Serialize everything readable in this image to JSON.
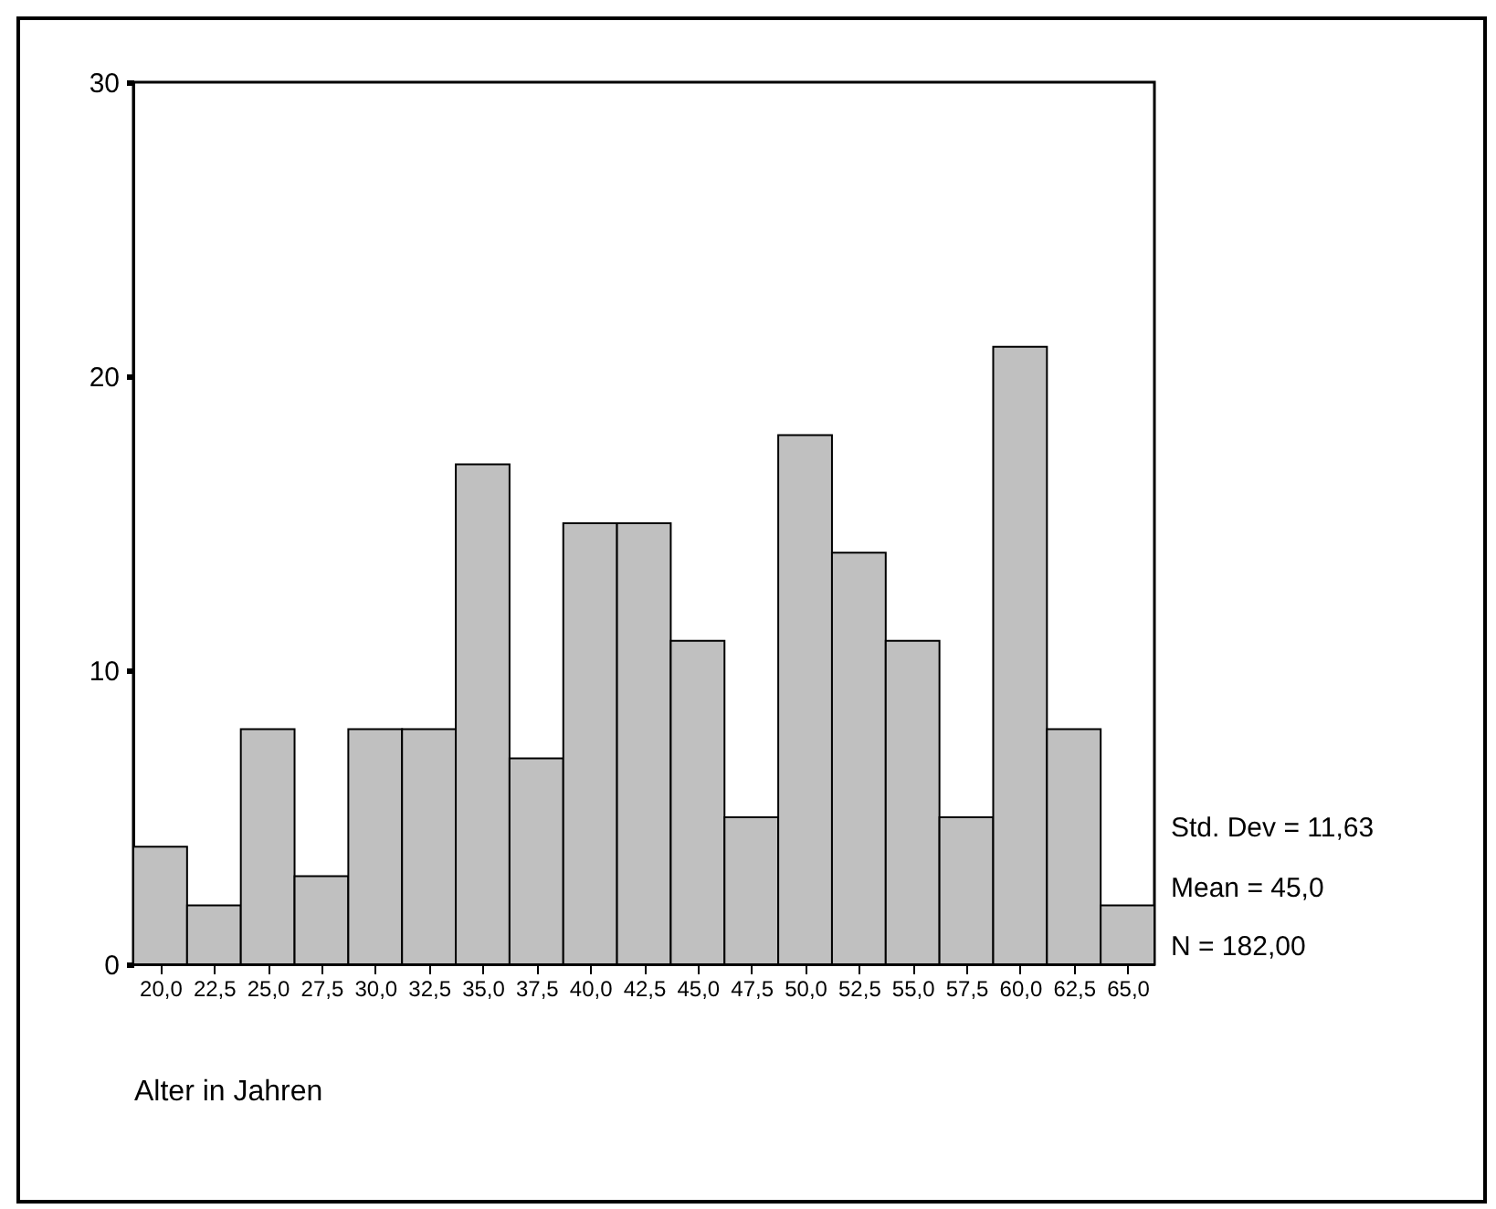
{
  "chart_data": {
    "type": "histogram",
    "xlabel": "Alter in Jahren",
    "bins": [
      18.75,
      21.25,
      23.75,
      26.25,
      28.75,
      31.25,
      33.75,
      36.25,
      38.75,
      41.25,
      43.75,
      46.25,
      48.75,
      51.25,
      53.75,
      56.25,
      58.75,
      61.25,
      63.75,
      66.25
    ],
    "values": [
      4,
      2,
      8,
      3,
      8,
      8,
      17,
      7,
      15,
      15,
      11,
      5,
      18,
      14,
      11,
      5,
      21,
      8,
      2
    ],
    "color": "#c0c0c0",
    "xlim": [
      18.75,
      66.25
    ],
    "xticks": [
      {
        "value": 20,
        "label": "20,0"
      },
      {
        "value": 22.5,
        "label": "22,5"
      },
      {
        "value": 25,
        "label": "25,0"
      },
      {
        "value": 27.5,
        "label": "27,5"
      },
      {
        "value": 30,
        "label": "30,0"
      },
      {
        "value": 32.5,
        "label": "32,5"
      },
      {
        "value": 35,
        "label": "35,0"
      },
      {
        "value": 37.5,
        "label": "37,5"
      },
      {
        "value": 40,
        "label": "40,0"
      },
      {
        "value": 42.5,
        "label": "42,5"
      },
      {
        "value": 45,
        "label": "45,0"
      },
      {
        "value": 47.5,
        "label": "47,5"
      },
      {
        "value": 50,
        "label": "50,0"
      },
      {
        "value": 52.5,
        "label": "52,5"
      },
      {
        "value": 55,
        "label": "55,0"
      },
      {
        "value": 57.5,
        "label": "57,5"
      },
      {
        "value": 60,
        "label": "60,0"
      },
      {
        "value": 62.5,
        "label": "62,5"
      },
      {
        "value": 65,
        "label": "65,0"
      }
    ],
    "ylim": [
      0,
      30
    ],
    "yticks": [
      0,
      10,
      20,
      30
    ],
    "grid": false,
    "annotations": [
      "Std. Dev = 11,63",
      "Mean = 45,0",
      "N = 182,00"
    ]
  }
}
